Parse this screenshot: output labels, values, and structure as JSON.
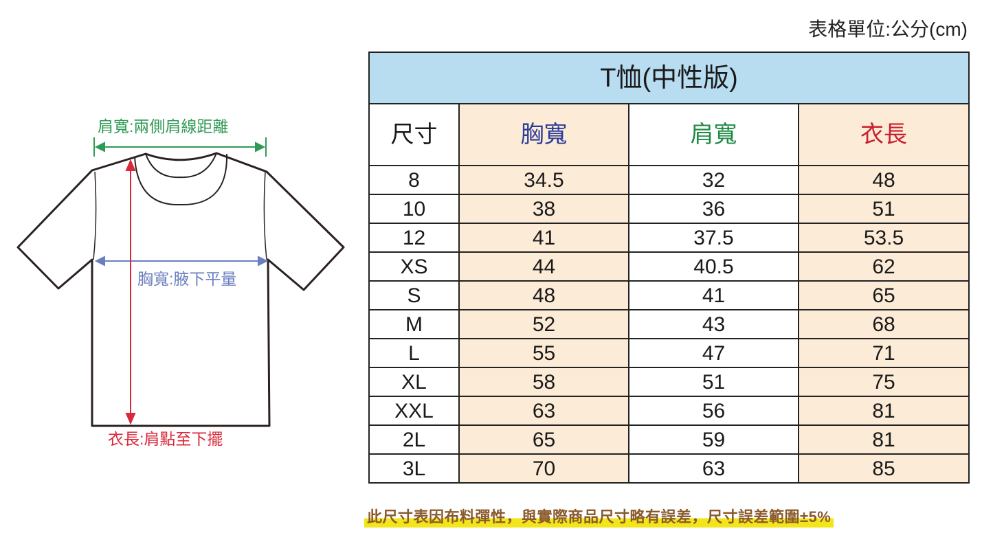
{
  "unit_note": "表格單位:公分(cm)",
  "diagram": {
    "shoulder_label": "肩寬:兩側肩線距離",
    "chest_label": "胸寬:腋下平量",
    "length_label": "衣長:肩點至下擺",
    "colors": {
      "shoulder": "#2f9a55",
      "chest": "#6a7fbf",
      "length": "#d8283a"
    }
  },
  "table": {
    "title": "T恤(中性版)",
    "headers": [
      "尺寸",
      "胸寬",
      "肩寬",
      "衣長"
    ],
    "header_colors": [
      "#1a1a1a",
      "#2b3b9a",
      "#1f8a45",
      "#c8202f"
    ],
    "rows": [
      [
        "8",
        "34.5",
        "32",
        "48"
      ],
      [
        "10",
        "38",
        "36",
        "51"
      ],
      [
        "12",
        "41",
        "37.5",
        "53.5"
      ],
      [
        "XS",
        "44",
        "40.5",
        "62"
      ],
      [
        "S",
        "48",
        "41",
        "65"
      ],
      [
        "M",
        "52",
        "43",
        "68"
      ],
      [
        "L",
        "55",
        "47",
        "71"
      ],
      [
        "XL",
        "58",
        "51",
        "75"
      ],
      [
        "XXL",
        "63",
        "56",
        "81"
      ],
      [
        "2L",
        "65",
        "59",
        "81"
      ],
      [
        "3L",
        "70",
        "63",
        "85"
      ]
    ]
  },
  "footnote": "此尺寸表因布料彈性，與實際商品尺寸略有誤差，尺寸誤差範圍±5%"
}
